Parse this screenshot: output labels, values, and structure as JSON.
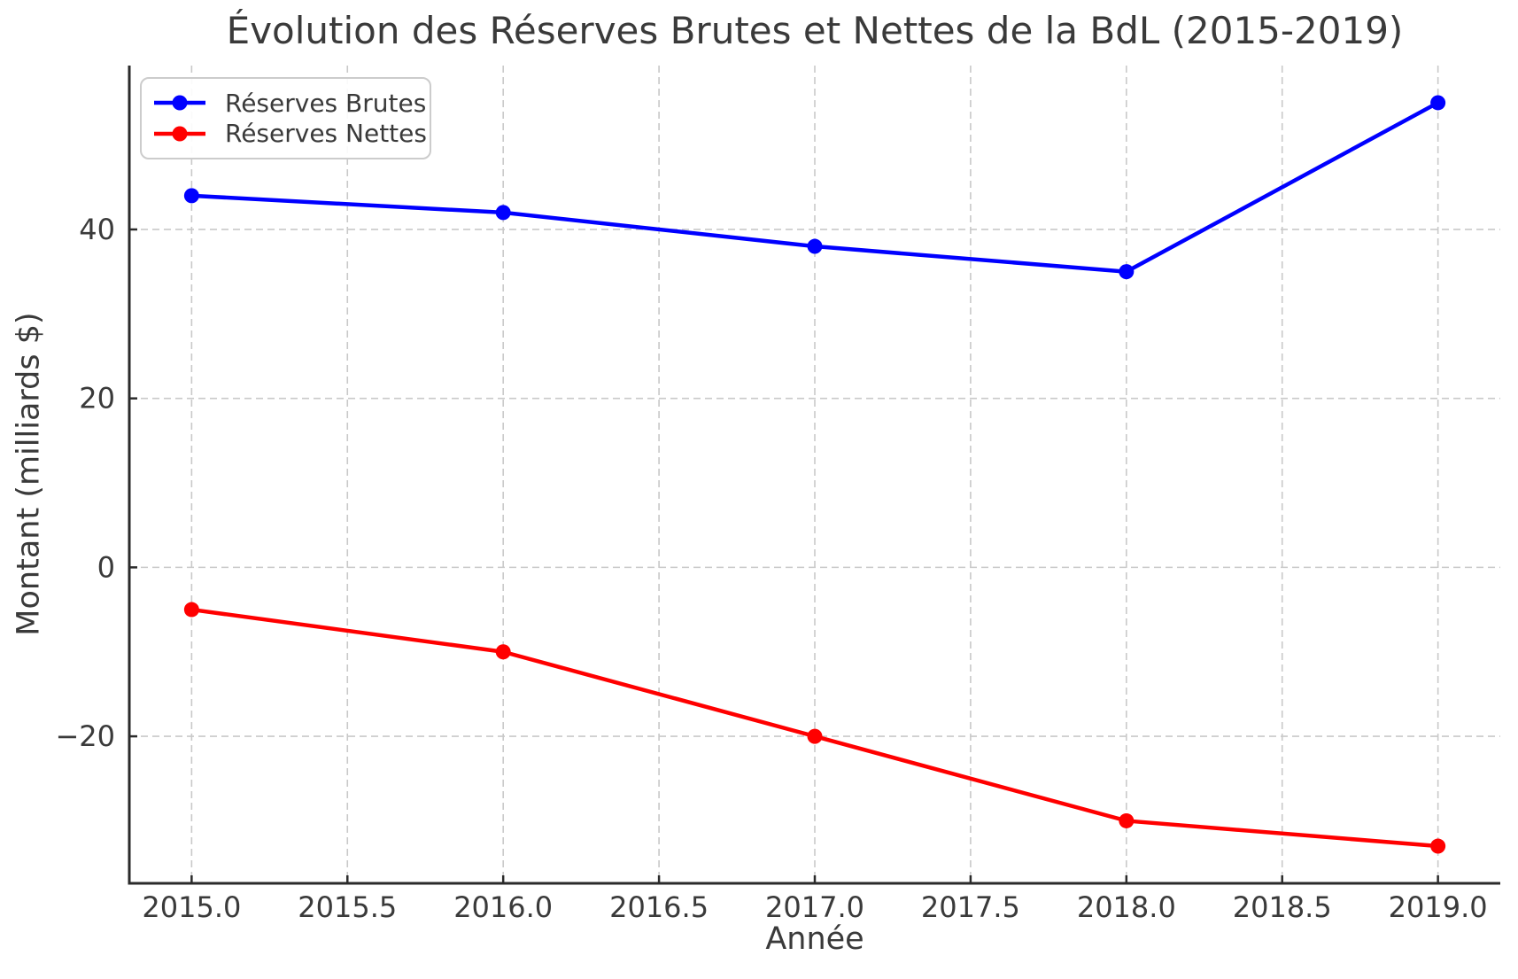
{
  "chart_data": {
    "type": "line",
    "title": "Évolution des Réserves Brutes et Nettes de la BdL (2015-2019)",
    "xlabel": "Année",
    "ylabel": "Montant (milliards $)",
    "x": [
      2015,
      2016,
      2017,
      2018,
      2019
    ],
    "series": [
      {
        "name": "Réserves Brutes",
        "color": "#0000ff",
        "values": [
          44,
          42,
          38,
          35,
          55
        ]
      },
      {
        "name": "Réserves Nettes",
        "color": "#ff0000",
        "values": [
          -5,
          -10,
          -20,
          -30,
          -33
        ]
      }
    ],
    "xlim": [
      2014.8,
      2019.2
    ],
    "ylim": [
      -37.4,
      59.4
    ],
    "xticks": {
      "values": [
        2015.0,
        2015.5,
        2016.0,
        2016.5,
        2017.0,
        2017.5,
        2018.0,
        2018.5,
        2019.0
      ],
      "labels": [
        "2015.0",
        "2015.5",
        "2016.0",
        "2016.5",
        "2017.0",
        "2017.5",
        "2018.0",
        "2018.5",
        "2019.0"
      ]
    },
    "yticks": {
      "values": [
        -20,
        0,
        20,
        40
      ],
      "labels": [
        "−20",
        "0",
        "20",
        "40"
      ]
    },
    "grid": true,
    "legend_position": "upper left",
    "marker": "o"
  },
  "style_colors": {
    "background": "#ffffff",
    "grid": "#c9c9c9",
    "spine": "#2b2b2b",
    "tick": "#2b2b2b",
    "text": "#3a3a3a",
    "legend_border": "#cccccc"
  }
}
